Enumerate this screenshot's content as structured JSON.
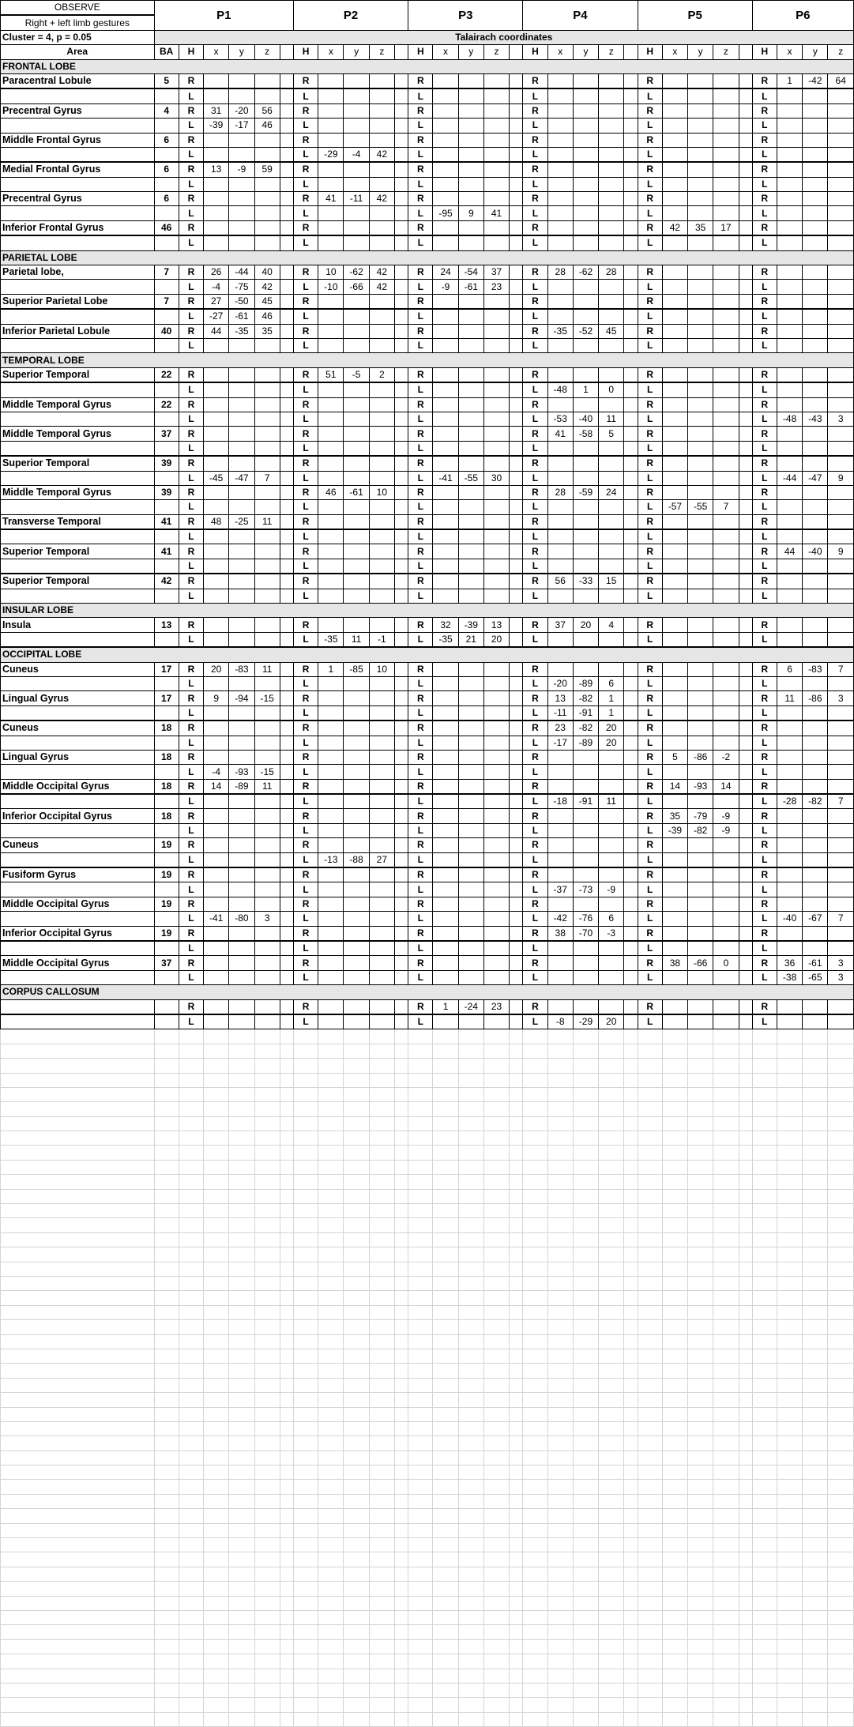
{
  "header": {
    "observe": "OBSERVE",
    "condition": "Right + left limb gestures",
    "cluster": "Cluster = 4, p = 0.05",
    "coordinates_label": "Talairach coordinates",
    "area_label": "Area",
    "ba_label": "BA",
    "h_label": "H",
    "axes": [
      "x",
      "y",
      "z"
    ],
    "participants": [
      "P1",
      "P2",
      "P3",
      "P4",
      "P5",
      "P6"
    ]
  },
  "sections": [
    {
      "title": "FRONTAL LOBE",
      "areas": [
        {
          "name": "Paracentral Lobule",
          "ba": "5",
          "rows": [
            {
              "h": "R",
              "P6": [
                "1",
                "-42",
                "64"
              ]
            },
            {
              "h": "L"
            }
          ]
        },
        {
          "name": "Precentral Gyrus",
          "ba": "4",
          "rows": [
            {
              "h": "R",
              "P1": [
                "31",
                "-20",
                "56"
              ]
            },
            {
              "h": "L",
              "P1": [
                "-39",
                "-17",
                "46"
              ]
            }
          ]
        },
        {
          "name": "Middle Frontal Gyrus",
          "ba": "6",
          "rows": [
            {
              "h": "R"
            },
            {
              "h": "L",
              "P2": [
                "-29",
                "-4",
                "42"
              ]
            }
          ]
        },
        {
          "name": "Medial Frontal Gyrus",
          "ba": "6",
          "rows": [
            {
              "h": "R",
              "P1": [
                "13",
                "-9",
                "59"
              ]
            },
            {
              "h": "L"
            }
          ]
        },
        {
          "name": "Precentral Gyrus",
          "ba": "6",
          "rows": [
            {
              "h": "R",
              "P2": [
                "41",
                "-11",
                "42"
              ]
            },
            {
              "h": "L",
              "P3": [
                "-95",
                "9",
                "41"
              ]
            }
          ]
        },
        {
          "name": "Inferior Frontal Gyrus",
          "ba": "46",
          "rows": [
            {
              "h": "R",
              "P5": [
                "42",
                "35",
                "17"
              ]
            },
            {
              "h": "L"
            }
          ]
        }
      ]
    },
    {
      "title": "PARIETAL LOBE",
      "areas": [
        {
          "name": "Parietal lobe,",
          "ba": "7",
          "rows": [
            {
              "h": "R",
              "P1": [
                "26",
                "-44",
                "40"
              ],
              "P2": [
                "10",
                "-62",
                "42"
              ],
              "P3": [
                "24",
                "-54",
                "37"
              ],
              "P4": [
                "28",
                "-62",
                "28"
              ]
            },
            {
              "h": "L",
              "P1": [
                "-4",
                "-75",
                "42"
              ],
              "P2": [
                "-10",
                "-66",
                "42"
              ],
              "P3": [
                "-9",
                "-61",
                "23"
              ]
            }
          ]
        },
        {
          "name": "Superior Parietal Lobe",
          "ba": "7",
          "rows": [
            {
              "h": "R",
              "P1": [
                "27",
                "-50",
                "45"
              ]
            },
            {
              "h": "L",
              "P1": [
                "-27",
                "-61",
                "46"
              ]
            }
          ]
        },
        {
          "name": "Inferior Parietal Lobule",
          "ba": "40",
          "rows": [
            {
              "h": "R",
              "P1": [
                "44",
                "-35",
                "35"
              ],
              "P4": [
                "-35",
                "-52",
                "45"
              ]
            },
            {
              "h": "L"
            }
          ]
        }
      ]
    },
    {
      "title": "TEMPORAL LOBE",
      "areas": [
        {
          "name": "Superior Temporal",
          "ba": "22",
          "rows": [
            {
              "h": "R",
              "P2": [
                "51",
                "-5",
                "2"
              ]
            },
            {
              "h": "L",
              "P4": [
                "-48",
                "1",
                "0"
              ]
            }
          ]
        },
        {
          "name": "Middle Temporal Gyrus",
          "ba": "22",
          "rows": [
            {
              "h": "R"
            },
            {
              "h": "L",
              "P4": [
                "-53",
                "-40",
                "11"
              ],
              "P6": [
                "-48",
                "-43",
                "3"
              ]
            }
          ]
        },
        {
          "name": "Middle Temporal Gyrus",
          "ba": "37",
          "rows": [
            {
              "h": "R",
              "P4": [
                "41",
                "-58",
                "5"
              ]
            },
            {
              "h": "L"
            }
          ]
        },
        {
          "name": "Superior Temporal",
          "ba": "39",
          "rows": [
            {
              "h": "R"
            },
            {
              "h": "L",
              "P1": [
                "-45",
                "-47",
                "7"
              ],
              "P3": [
                "-41",
                "-55",
                "30"
              ],
              "P6": [
                "-44",
                "-47",
                "9"
              ]
            }
          ]
        },
        {
          "name": "Middle Temporal Gyrus",
          "ba": "39",
          "rows": [
            {
              "h": "R",
              "P2": [
                "46",
                "-61",
                "10"
              ],
              "P4": [
                "28",
                "-59",
                "24"
              ]
            },
            {
              "h": "L",
              "P5": [
                "-57",
                "-55",
                "7"
              ]
            }
          ]
        },
        {
          "name": "Transverse Temporal",
          "ba": "41",
          "rows": [
            {
              "h": "R",
              "P1": [
                "48",
                "-25",
                "11"
              ]
            },
            {
              "h": "L"
            }
          ]
        },
        {
          "name": "Superior Temporal",
          "ba": "41",
          "rows": [
            {
              "h": "R",
              "P6": [
                "44",
                "-40",
                "9"
              ]
            },
            {
              "h": "L"
            }
          ]
        },
        {
          "name": "Superior Temporal",
          "ba": "42",
          "rows": [
            {
              "h": "R",
              "P4": [
                "56",
                "-33",
                "15"
              ]
            },
            {
              "h": "L"
            }
          ]
        }
      ]
    },
    {
      "title": "INSULAR LOBE",
      "areas": [
        {
          "name": "Insula",
          "ba": "13",
          "rows": [
            {
              "h": "R",
              "P3": [
                "32",
                "-39",
                "13"
              ],
              "P4": [
                "37",
                "20",
                "4"
              ]
            },
            {
              "h": "L",
              "P2": [
                "-35",
                "11",
                "-1"
              ],
              "P3": [
                "-35",
                "21",
                "20"
              ]
            }
          ]
        }
      ]
    },
    {
      "title": "OCCIPITAL LOBE",
      "areas": [
        {
          "name": "Cuneus",
          "ba": "17",
          "rows": [
            {
              "h": "R",
              "P1": [
                "20",
                "-83",
                "11"
              ],
              "P2": [
                "1",
                "-85",
                "10"
              ],
              "P6": [
                "6",
                "-83",
                "7"
              ]
            },
            {
              "h": "L",
              "P4": [
                "-20",
                "-89",
                "6"
              ]
            }
          ]
        },
        {
          "name": "Lingual Gyrus",
          "ba": "17",
          "rows": [
            {
              "h": "R",
              "P1": [
                "9",
                "-94",
                "-15"
              ],
              "P4": [
                "13",
                "-82",
                "1"
              ],
              "P6": [
                "11",
                "-86",
                "3"
              ]
            },
            {
              "h": "L",
              "P4": [
                "-11",
                "-91",
                "1"
              ]
            }
          ]
        },
        {
          "name": "Cuneus",
          "ba": "18",
          "rows": [
            {
              "h": "R",
              "P4": [
                "23",
                "-82",
                "20"
              ]
            },
            {
              "h": "L",
              "P4": [
                "-17",
                "-89",
                "20"
              ]
            }
          ]
        },
        {
          "name": "Lingual Gyrus",
          "ba": "18",
          "rows": [
            {
              "h": "R",
              "P5": [
                "5",
                "-86",
                "-2"
              ]
            },
            {
              "h": "L",
              "P1": [
                "-4",
                "-93",
                "-15"
              ]
            }
          ]
        },
        {
          "name": "Middle Occipital Gyrus",
          "ba": "18",
          "rows": [
            {
              "h": "R",
              "P1": [
                "14",
                "-89",
                "11"
              ],
              "P5": [
                "14",
                "-93",
                "14"
              ]
            },
            {
              "h": "L",
              "P4": [
                "-18",
                "-91",
                "11"
              ],
              "P6": [
                "-28",
                "-82",
                "7"
              ]
            }
          ]
        },
        {
          "name": "Inferior Occipital Gyrus",
          "ba": "18",
          "rows": [
            {
              "h": "R",
              "P5": [
                "35",
                "-79",
                "-9"
              ]
            },
            {
              "h": "L",
              "P5": [
                "-39",
                "-82",
                "-9"
              ]
            }
          ]
        },
        {
          "name": "Cuneus",
          "ba": "19",
          "rows": [
            {
              "h": "R"
            },
            {
              "h": "L",
              "P2": [
                "-13",
                "-88",
                "27"
              ]
            }
          ]
        },
        {
          "name": "Fusiform Gyrus",
          "ba": "19",
          "rows": [
            {
              "h": "R"
            },
            {
              "h": "L",
              "P4": [
                "-37",
                "-73",
                "-9"
              ]
            }
          ]
        },
        {
          "name": "Middle Occipital Gyrus",
          "ba": "19",
          "rows": [
            {
              "h": "R"
            },
            {
              "h": "L",
              "P1": [
                "-41",
                "-80",
                "3"
              ],
              "P4": [
                "-42",
                "-76",
                "6"
              ],
              "P6": [
                "-40",
                "-67",
                "7"
              ]
            }
          ]
        },
        {
          "name": "Inferior Occipital Gyrus",
          "ba": "19",
          "rows": [
            {
              "h": "R",
              "P4": [
                "38",
                "-70",
                "-3"
              ]
            },
            {
              "h": "L"
            }
          ]
        },
        {
          "name": "Middle Occipital Gyrus",
          "ba": "37",
          "rows": [
            {
              "h": "R",
              "P5": [
                "38",
                "-66",
                "0"
              ],
              "P6": [
                "36",
                "-61",
                "3"
              ]
            },
            {
              "h": "L",
              "P6": [
                "-38",
                "-65",
                "3"
              ]
            }
          ]
        }
      ]
    },
    {
      "title": "CORPUS CALLOSUM",
      "areas": [
        {
          "name": "",
          "ba": "",
          "rows": [
            {
              "h": "R",
              "P3": [
                "1",
                "-24",
                "23"
              ]
            },
            {
              "h": "L",
              "P4": [
                "-8",
                "-29",
                "20"
              ]
            }
          ]
        }
      ]
    }
  ]
}
